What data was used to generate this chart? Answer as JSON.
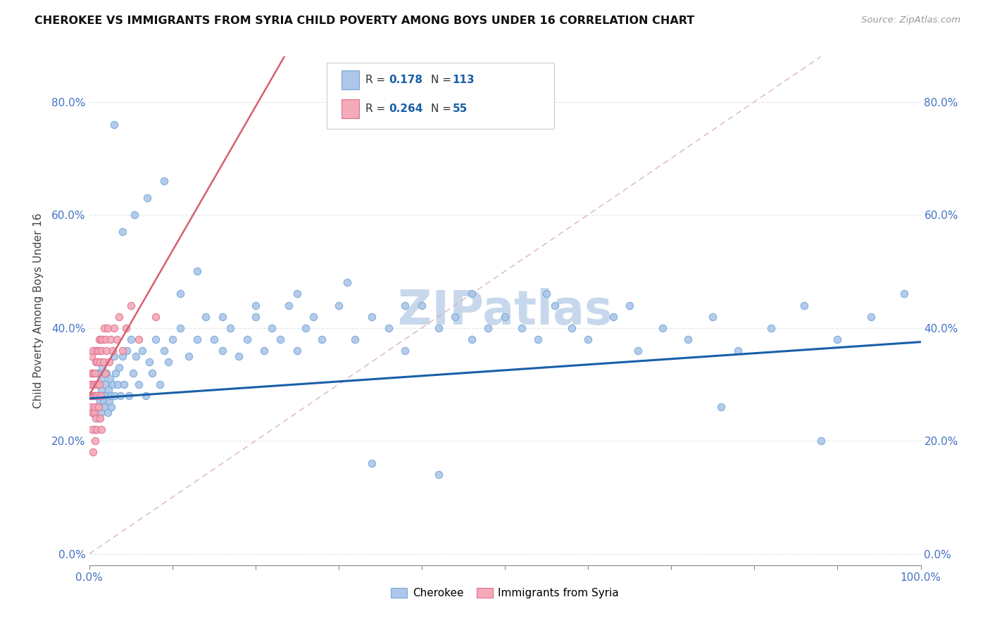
{
  "title": "CHEROKEE VS IMMIGRANTS FROM SYRIA CHILD POVERTY AMONG BOYS UNDER 16 CORRELATION CHART",
  "source": "Source: ZipAtlas.com",
  "tick_color": "#4472c4",
  "ylabel": "Child Poverty Among Boys Under 16",
  "r_cherokee": 0.178,
  "n_cherokee": 113,
  "r_syria": 0.264,
  "n_syria": 55,
  "cherokee_color": "#aec6e8",
  "cherokee_edge": "#6fa8d8",
  "syria_color": "#f4aab8",
  "syria_edge": "#e07090",
  "trend_cherokee_color": "#1a5fa8",
  "trend_syria_color": "#d46070",
  "diagonal_color": "#d4a0a8",
  "r_n_color": "#1a5fa8",
  "watermark_color": "#c8d8ec",
  "watermark": "ZIPatlas",
  "legend_text_color": "#1a5fa8",
  "cherokee_x": [
    0.005,
    0.006,
    0.007,
    0.008,
    0.009,
    0.01,
    0.01,
    0.011,
    0.012,
    0.013,
    0.014,
    0.015,
    0.015,
    0.016,
    0.017,
    0.018,
    0.019,
    0.02,
    0.021,
    0.022,
    0.023,
    0.024,
    0.025,
    0.026,
    0.027,
    0.028,
    0.03,
    0.031,
    0.032,
    0.034,
    0.036,
    0.038,
    0.04,
    0.042,
    0.045,
    0.048,
    0.05,
    0.053,
    0.056,
    0.06,
    0.064,
    0.068,
    0.072,
    0.076,
    0.08,
    0.085,
    0.09,
    0.095,
    0.1,
    0.11,
    0.12,
    0.13,
    0.14,
    0.15,
    0.16,
    0.17,
    0.18,
    0.19,
    0.2,
    0.21,
    0.22,
    0.23,
    0.24,
    0.25,
    0.26,
    0.27,
    0.28,
    0.3,
    0.32,
    0.34,
    0.36,
    0.38,
    0.4,
    0.42,
    0.44,
    0.46,
    0.48,
    0.5,
    0.52,
    0.54,
    0.56,
    0.58,
    0.6,
    0.63,
    0.66,
    0.69,
    0.72,
    0.75,
    0.78,
    0.82,
    0.86,
    0.9,
    0.94,
    0.98,
    0.03,
    0.04,
    0.055,
    0.07,
    0.09,
    0.11,
    0.13,
    0.16,
    0.2,
    0.25,
    0.31,
    0.38,
    0.46,
    0.55,
    0.65,
    0.76,
    0.88,
    0.34,
    0.42
  ],
  "cherokee_y": [
    0.25,
    0.28,
    0.22,
    0.3,
    0.26,
    0.28,
    0.32,
    0.24,
    0.3,
    0.27,
    0.25,
    0.31,
    0.29,
    0.33,
    0.27,
    0.26,
    0.3,
    0.28,
    0.32,
    0.25,
    0.29,
    0.27,
    0.31,
    0.28,
    0.26,
    0.3,
    0.35,
    0.28,
    0.32,
    0.3,
    0.33,
    0.28,
    0.35,
    0.3,
    0.36,
    0.28,
    0.38,
    0.32,
    0.35,
    0.3,
    0.36,
    0.28,
    0.34,
    0.32,
    0.38,
    0.3,
    0.36,
    0.34,
    0.38,
    0.4,
    0.35,
    0.38,
    0.42,
    0.38,
    0.36,
    0.4,
    0.35,
    0.38,
    0.42,
    0.36,
    0.4,
    0.38,
    0.44,
    0.36,
    0.4,
    0.42,
    0.38,
    0.44,
    0.38,
    0.42,
    0.4,
    0.36,
    0.44,
    0.4,
    0.42,
    0.38,
    0.4,
    0.42,
    0.4,
    0.38,
    0.44,
    0.4,
    0.38,
    0.42,
    0.36,
    0.4,
    0.38,
    0.42,
    0.36,
    0.4,
    0.44,
    0.38,
    0.42,
    0.46,
    0.76,
    0.57,
    0.6,
    0.63,
    0.66,
    0.46,
    0.5,
    0.42,
    0.44,
    0.46,
    0.48,
    0.44,
    0.46,
    0.46,
    0.44,
    0.26,
    0.2,
    0.16,
    0.14
  ],
  "syria_x": [
    0.001,
    0.002,
    0.002,
    0.003,
    0.003,
    0.003,
    0.004,
    0.004,
    0.004,
    0.005,
    0.005,
    0.005,
    0.005,
    0.006,
    0.006,
    0.006,
    0.007,
    0.007,
    0.007,
    0.008,
    0.008,
    0.008,
    0.009,
    0.009,
    0.009,
    0.01,
    0.01,
    0.011,
    0.011,
    0.012,
    0.012,
    0.013,
    0.013,
    0.014,
    0.014,
    0.015,
    0.015,
    0.016,
    0.017,
    0.018,
    0.019,
    0.02,
    0.021,
    0.022,
    0.024,
    0.026,
    0.028,
    0.03,
    0.033,
    0.036,
    0.04,
    0.044,
    0.05,
    0.06,
    0.08
  ],
  "syria_y": [
    0.28,
    0.3,
    0.26,
    0.32,
    0.28,
    0.35,
    0.25,
    0.3,
    0.22,
    0.28,
    0.32,
    0.18,
    0.36,
    0.3,
    0.25,
    0.28,
    0.32,
    0.26,
    0.2,
    0.34,
    0.28,
    0.24,
    0.36,
    0.3,
    0.22,
    0.34,
    0.28,
    0.36,
    0.26,
    0.38,
    0.3,
    0.34,
    0.24,
    0.38,
    0.28,
    0.36,
    0.22,
    0.38,
    0.34,
    0.4,
    0.32,
    0.38,
    0.36,
    0.4,
    0.34,
    0.38,
    0.36,
    0.4,
    0.38,
    0.42,
    0.36,
    0.4,
    0.44,
    0.38,
    0.42
  ],
  "xlim": [
    0.0,
    1.0
  ],
  "ylim": [
    -0.02,
    0.88
  ],
  "yticks": [
    0.0,
    0.2,
    0.4,
    0.6,
    0.8
  ],
  "ytick_labels": [
    "0.0%",
    "20.0%",
    "40.0%",
    "60.0%",
    "80.0%"
  ],
  "xticks": [
    0.0,
    0.1,
    0.2,
    0.3,
    0.4,
    0.5,
    0.6,
    0.7,
    0.8,
    0.9,
    1.0
  ],
  "xtick_labels_major": {
    "0.0": "0.0%",
    "0.5": "",
    "1.0": "100.0%"
  },
  "grid_color": "#dde5f0",
  "background_color": "#ffffff",
  "marker_size": 55,
  "trend_cherokee_start_y": 0.275,
  "trend_cherokee_end_y": 0.375
}
